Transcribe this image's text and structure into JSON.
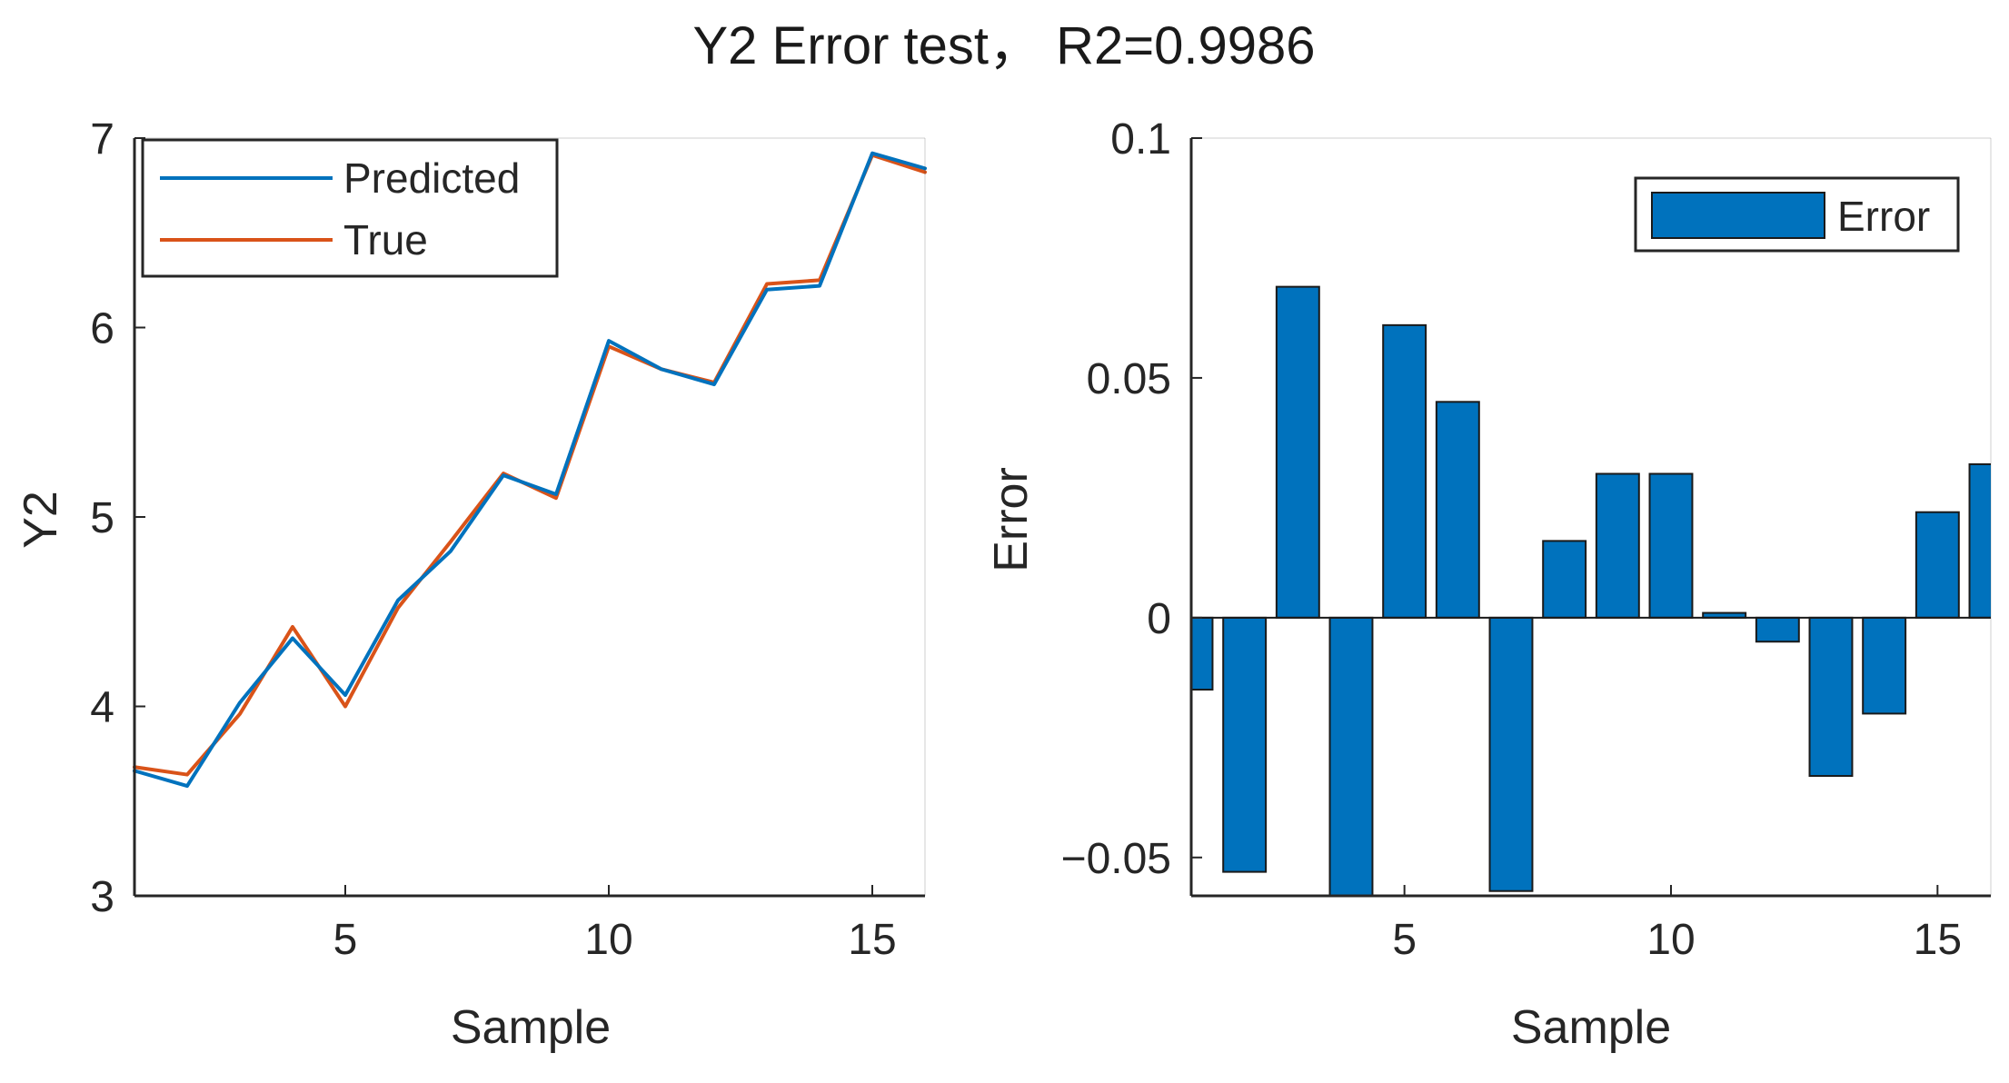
{
  "figure": {
    "title": "Y2 Error test， R2=0.9986"
  },
  "chart_data": [
    {
      "type": "line",
      "xlabel": "Sample",
      "ylabel": "Y2",
      "xlim": [
        1,
        16
      ],
      "ylim": [
        3,
        7
      ],
      "xticks": [
        5,
        10,
        15
      ],
      "yticks": [
        3,
        4,
        5,
        6,
        7
      ],
      "grid": false,
      "legend_position": "top-left",
      "x": [
        1,
        2,
        3,
        4,
        5,
        6,
        7,
        8,
        9,
        10,
        11,
        12,
        13,
        14,
        15,
        16
      ],
      "series": [
        {
          "name": "Predicted",
          "color": "#0072BD",
          "values": [
            3.66,
            3.58,
            4.02,
            4.36,
            4.06,
            4.56,
            4.82,
            5.22,
            5.12,
            5.93,
            5.78,
            5.7,
            6.2,
            6.22,
            6.92,
            6.84
          ]
        },
        {
          "name": "True",
          "color": "#D95319",
          "values": [
            3.68,
            3.64,
            3.96,
            4.42,
            4.0,
            4.52,
            4.87,
            5.23,
            5.1,
            5.9,
            5.78,
            5.71,
            6.23,
            6.25,
            6.91,
            6.82
          ]
        }
      ]
    },
    {
      "type": "bar",
      "xlabel": "Sample",
      "ylabel": "Error",
      "xlim": [
        1,
        16
      ],
      "ylim": [
        -0.058,
        0.1
      ],
      "xticks": [
        5,
        10,
        15
      ],
      "yticks": [
        -0.05,
        0,
        0.05,
        0.1
      ],
      "ytick_labels": [
        "−0.05",
        "0",
        "0.05",
        "0.1"
      ],
      "grid": false,
      "legend_position": "top-right",
      "categories": [
        1,
        2,
        3,
        4,
        5,
        6,
        7,
        8,
        9,
        10,
        11,
        12,
        13,
        14,
        15,
        16
      ],
      "series": [
        {
          "name": "Error",
          "color": "#0072BD",
          "values": [
            -0.015,
            -0.053,
            0.069,
            -0.058,
            0.061,
            0.045,
            -0.057,
            0.016,
            0.03,
            0.03,
            0.001,
            -0.005,
            -0.033,
            -0.02,
            0.022,
            0.032
          ]
        }
      ]
    }
  ]
}
